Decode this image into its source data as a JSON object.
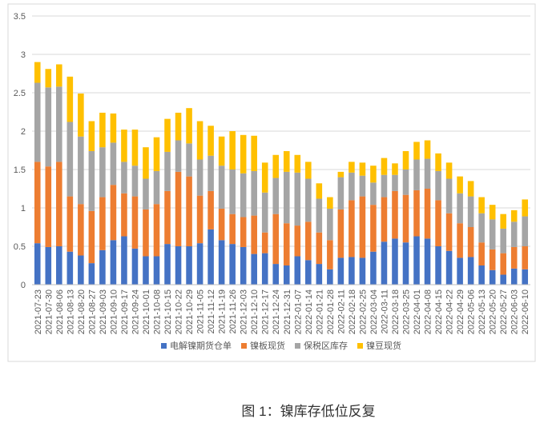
{
  "chart_data": {
    "type": "bar",
    "stacked": true,
    "caption": "图 1：镍库存低位反复",
    "categories": [
      "2021-07-23",
      "2021-07-30",
      "2021-08-06",
      "2021-08-13",
      "2021-08-20",
      "2021-08-27",
      "2021-09-03",
      "2021-09-10",
      "2021-09-17",
      "2021-09-24",
      "2021-10-01",
      "2021-10-08",
      "2021-10-15",
      "2021-10-22",
      "2021-10-29",
      "2021-11-05",
      "2021-11-12",
      "2021-11-19",
      "2021-11-26",
      "2021-12-03",
      "2021-12-10",
      "2021-12-17",
      "2021-12-24",
      "2021-12-31",
      "2022-01-07",
      "2022-01-14",
      "2022-01-21",
      "2022-01-28",
      "2022-02-11",
      "2022-02-18",
      "2022-02-25",
      "2022-03-04",
      "2022-03-11",
      "2022-03-18",
      "2022-03-25",
      "2022-04-01",
      "2022-04-08",
      "2022-04-15",
      "2022-04-22",
      "2022-04-29",
      "2022-05-06",
      "2022-05-13",
      "2022-05-20",
      "2022-05-27",
      "2022-06-03",
      "2022-06-10"
    ],
    "series": [
      {
        "name": "电解镍期货仓单",
        "color": "#4472c4",
        "values": [
          0.54,
          0.49,
          0.5,
          0.43,
          0.38,
          0.28,
          0.45,
          0.58,
          0.63,
          0.47,
          0.37,
          0.37,
          0.53,
          0.5,
          0.5,
          0.54,
          0.72,
          0.58,
          0.53,
          0.49,
          0.4,
          0.41,
          0.27,
          0.25,
          0.37,
          0.32,
          0.27,
          0.2,
          0.35,
          0.36,
          0.35,
          0.43,
          0.56,
          0.6,
          0.55,
          0.63,
          0.6,
          0.5,
          0.44,
          0.35,
          0.36,
          0.25,
          0.19,
          0.13,
          0.21,
          0.2
        ]
      },
      {
        "name": "镍板现货",
        "color": "#ed7d31",
        "values": [
          1.06,
          1.05,
          1.1,
          0.72,
          0.67,
          0.68,
          0.69,
          0.72,
          0.56,
          0.68,
          0.61,
          0.68,
          0.69,
          0.97,
          0.91,
          0.62,
          0.5,
          0.41,
          0.39,
          0.39,
          0.5,
          0.27,
          0.65,
          0.55,
          0.4,
          0.5,
          0.41,
          0.38,
          0.63,
          0.74,
          0.8,
          0.61,
          0.58,
          0.62,
          0.62,
          0.6,
          0.65,
          0.6,
          0.49,
          0.45,
          0.39,
          0.3,
          0.27,
          0.28,
          0.28,
          0.3
        ]
      },
      {
        "name": "保税区库存",
        "color": "#a5a5a5",
        "values": [
          1.03,
          1.03,
          0.98,
          0.97,
          0.88,
          0.78,
          0.65,
          0.55,
          0.41,
          0.4,
          0.4,
          0.43,
          0.51,
          0.41,
          0.43,
          0.47,
          0.46,
          0.56,
          0.58,
          0.57,
          0.58,
          0.52,
          0.47,
          0.67,
          0.69,
          0.56,
          0.44,
          0.41,
          0.42,
          0.36,
          0.27,
          0.29,
          0.29,
          0.21,
          0.33,
          0.4,
          0.39,
          0.38,
          0.45,
          0.39,
          0.4,
          0.38,
          0.39,
          0.32,
          0.33,
          0.39
        ]
      },
      {
        "name": "镍豆现货",
        "color": "#ffc000",
        "values": [
          0.27,
          0.24,
          0.29,
          0.59,
          0.56,
          0.39,
          0.45,
          0.38,
          0.42,
          0.47,
          0.41,
          0.44,
          0.43,
          0.36,
          0.46,
          0.5,
          0.39,
          0.38,
          0.5,
          0.5,
          0.46,
          0.39,
          0.3,
          0.27,
          0.23,
          0.22,
          0.2,
          0.15,
          0.07,
          0.14,
          0.17,
          0.22,
          0.22,
          0.15,
          0.24,
          0.23,
          0.24,
          0.23,
          0.21,
          0.22,
          0.2,
          0.21,
          0.19,
          0.19,
          0.15,
          0.22
        ]
      }
    ],
    "ylim": [
      0,
      3.5
    ],
    "yticks": [
      0,
      0.5,
      1,
      1.5,
      2,
      2.5,
      3,
      3.5
    ],
    "grid": true,
    "legend": "bottom"
  }
}
